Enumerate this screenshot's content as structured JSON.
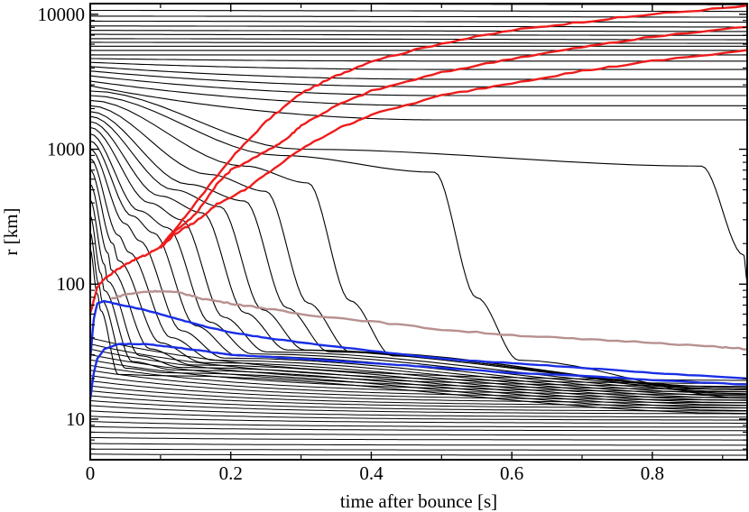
{
  "chart_data": {
    "type": "line",
    "title": "",
    "xlabel": "time after bounce [s]",
    "ylabel": "r [km]",
    "xlim": [
      0,
      0.935
    ],
    "ylim": [
      5,
      12000
    ],
    "yscale": "log",
    "grid": false,
    "legend": "none",
    "x_ticks": [
      0,
      0.2,
      0.4,
      0.6,
      0.8
    ],
    "x_tick_labels": [
      "0",
      "0.2",
      "0.4",
      "0.6",
      "0.8"
    ],
    "y_ticks": [
      10,
      100,
      1000,
      10000
    ],
    "y_tick_labels": [
      "10",
      "100",
      "1000",
      "10000"
    ],
    "colors": {
      "trajectory": "#000000",
      "shock": "#ee1c1c",
      "gain_radius": "#b89090",
      "neutrinosphere": "#1a2ee6"
    },
    "trajectories": {
      "static_outer": [
        12000,
        10700,
        9700,
        8900,
        8200,
        7600,
        7100,
        6600,
        6200
      ],
      "bending_outer": [
        {
          "r0": 5800,
          "r_end": 5800
        },
        {
          "r0": 5400,
          "r_end": 5400
        },
        {
          "r0": 5000,
          "r_end": 5000
        },
        {
          "r0": 4700,
          "r_end": 4500
        },
        {
          "r0": 4400,
          "r_end": 3900
        },
        {
          "r0": 4100,
          "r_end": 3300
        },
        {
          "r0": 3800,
          "r_end": 2900
        },
        {
          "r0": 3500,
          "r_end": 2500
        },
        {
          "r0": 3200,
          "r_end": 2100
        },
        {
          "r0": 2950,
          "r_end": 1650
        }
      ],
      "collapsing": [
        {
          "r0": 2700,
          "t_knee": 0.3,
          "r_knee": 1000,
          "t_drop": 0.93,
          "r_final": 100
        },
        {
          "r0": 2500,
          "t_knee": 0.27,
          "r_knee": 900,
          "t_drop": 0.55,
          "r_final": 26
        },
        {
          "r0": 2300,
          "t_knee": 0.22,
          "r_knee": 750,
          "t_drop": 0.37,
          "r_final": 28
        },
        {
          "r0": 2100,
          "t_knee": 0.17,
          "r_knee": 650,
          "t_drop": 0.31,
          "r_final": 30
        },
        {
          "r0": 1900,
          "t_knee": 0.14,
          "r_knee": 550,
          "t_drop": 0.28,
          "r_final": 30
        },
        {
          "r0": 1750,
          "t_knee": 0.12,
          "r_knee": 500,
          "t_drop": 0.245,
          "r_final": 31
        },
        {
          "r0": 1600,
          "t_knee": 0.1,
          "r_knee": 450,
          "t_drop": 0.22,
          "r_final": 31
        },
        {
          "r0": 1450,
          "t_knee": 0.085,
          "r_knee": 400,
          "t_drop": 0.19,
          "r_final": 30
        },
        {
          "r0": 1300,
          "t_knee": 0.07,
          "r_knee": 350,
          "t_drop": 0.17,
          "r_final": 29
        },
        {
          "r0": 1150,
          "t_knee": 0.06,
          "r_knee": 320,
          "t_drop": 0.15,
          "r_final": 28
        },
        {
          "r0": 1000,
          "t_knee": 0.05,
          "r_knee": 280,
          "t_drop": 0.13,
          "r_final": 27
        },
        {
          "r0": 850,
          "t_knee": 0.04,
          "r_knee": 230,
          "t_drop": 0.115,
          "r_final": 26
        },
        {
          "r0": 700,
          "t_knee": 0.032,
          "r_knee": 200,
          "t_drop": 0.1,
          "r_final": 25
        },
        {
          "r0": 550,
          "t_knee": 0.025,
          "r_knee": 170,
          "t_drop": 0.085,
          "r_final": 24
        },
        {
          "r0": 420,
          "t_knee": 0.02,
          "r_knee": 140,
          "t_drop": 0.07,
          "r_final": 23
        },
        {
          "r0": 320,
          "t_knee": 0.015,
          "r_knee": 120,
          "t_drop": 0.06,
          "r_final": 22
        },
        {
          "r0": 240,
          "t_knee": 0.012,
          "r_knee": 100,
          "t_drop": 0.05,
          "r_final": 21
        },
        {
          "r0": 180,
          "t_knee": 0.01,
          "r_knee": 85,
          "t_drop": 0.04,
          "r_final": 20
        }
      ],
      "inner_bundle": [
        {
          "r0": 40,
          "r_end": 19
        },
        {
          "r0": 36,
          "r_end": 18
        },
        {
          "r0": 33,
          "r_end": 17.2
        },
        {
          "r0": 30,
          "r_end": 16.4
        },
        {
          "r0": 27.5,
          "r_end": 15.7
        },
        {
          "r0": 25,
          "r_end": 15
        },
        {
          "r0": 23,
          "r_end": 14.3
        },
        {
          "r0": 21,
          "r_end": 13.7
        },
        {
          "r0": 19.2,
          "r_end": 13.1
        },
        {
          "r0": 17.6,
          "r_end": 12.5
        },
        {
          "r0": 16.2,
          "r_end": 12
        },
        {
          "r0": 14.9,
          "r_end": 11.4
        },
        {
          "r0": 13.7,
          "r_end": 10.9
        },
        {
          "r0": 12.6,
          "r_end": 10.3
        },
        {
          "r0": 11.5,
          "r_end": 9.8
        },
        {
          "r0": 10.5,
          "r_end": 9.3
        },
        {
          "r0": 9.6,
          "r_end": 8.7
        },
        {
          "r0": 8.8,
          "r_end": 8.2
        },
        {
          "r0": 8.0,
          "r_end": 7.6
        },
        {
          "r0": 7.3,
          "r_end": 7.0
        },
        {
          "r0": 6.6,
          "r_end": 6.4
        },
        {
          "r0": 6.0,
          "r_end": 5.9
        },
        {
          "r0": 5.5,
          "r_end": 5.4
        }
      ]
    },
    "series": [
      {
        "role": "shock_outer",
        "color": "#ee1c1c",
        "x": [
          0.0,
          0.01,
          0.02,
          0.04,
          0.06,
          0.08,
          0.1,
          0.12,
          0.15,
          0.2,
          0.25,
          0.3,
          0.35,
          0.4,
          0.5,
          0.6,
          0.7,
          0.8,
          0.935
        ],
        "y": [
          60,
          95,
          110,
          130,
          150,
          165,
          190,
          250,
          400,
          850,
          1600,
          2600,
          3500,
          4500,
          6100,
          7600,
          8800,
          10000,
          11500
        ]
      },
      {
        "role": "shock_middle",
        "color": "#ee1c1c",
        "x": [
          0.1,
          0.12,
          0.15,
          0.18,
          0.2,
          0.25,
          0.28,
          0.3,
          0.35,
          0.4,
          0.5,
          0.6,
          0.7,
          0.8,
          0.935
        ],
        "y": [
          190,
          245,
          330,
          550,
          700,
          960,
          1200,
          1500,
          2100,
          2700,
          3700,
          4700,
          5700,
          6800,
          8100
        ]
      },
      {
        "role": "shock_inner",
        "color": "#ee1c1c",
        "x": [
          0.1,
          0.12,
          0.15,
          0.18,
          0.22,
          0.25,
          0.3,
          0.35,
          0.4,
          0.5,
          0.6,
          0.7,
          0.8,
          0.935
        ],
        "y": [
          185,
          235,
          290,
          390,
          500,
          650,
          1000,
          1400,
          1800,
          2500,
          3100,
          3800,
          4500,
          5400
        ]
      },
      {
        "role": "gain_radius",
        "color": "#b89090",
        "x": [
          0.03,
          0.05,
          0.08,
          0.1,
          0.13,
          0.16,
          0.2,
          0.25,
          0.3,
          0.4,
          0.5,
          0.6,
          0.7,
          0.8,
          0.9,
          0.935
        ],
        "y": [
          78,
          84,
          88,
          89,
          86,
          78,
          72,
          66,
          60,
          53,
          46,
          42,
          39,
          37,
          34,
          33
        ]
      },
      {
        "role": "neutrinosphere_upper",
        "color": "#1a2ee6",
        "x": [
          0.0,
          0.005,
          0.01,
          0.02,
          0.04,
          0.08,
          0.12,
          0.16,
          0.2,
          0.25,
          0.3,
          0.4,
          0.5,
          0.6,
          0.7,
          0.8,
          0.935
        ],
        "y": [
          28,
          55,
          72,
          75,
          71,
          64,
          56,
          49,
          44,
          40,
          37,
          32,
          28,
          26,
          24,
          22,
          20
        ]
      },
      {
        "role": "neutrinosphere_lower",
        "color": "#1a2ee6",
        "x": [
          0.0,
          0.005,
          0.01,
          0.02,
          0.04,
          0.08,
          0.12,
          0.16,
          0.2,
          0.25,
          0.3,
          0.4,
          0.5,
          0.6,
          0.7,
          0.8,
          0.935
        ],
        "y": [
          14,
          22,
          28,
          33,
          36,
          36,
          34,
          32,
          30,
          29,
          28,
          26,
          24,
          22,
          21,
          19.5,
          18
        ]
      }
    ]
  }
}
